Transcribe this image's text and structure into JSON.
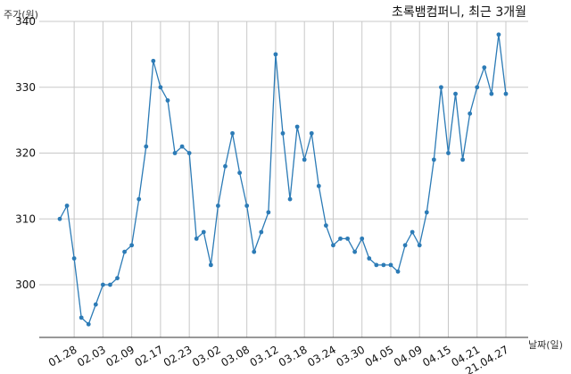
{
  "chart_data": {
    "type": "line",
    "title": "초록뱀컴퍼니, 최근 3개월",
    "ylabel": "주가(원)",
    "xlabel": "날짜(일)",
    "ylim": [
      292,
      340
    ],
    "yticks": [
      300,
      310,
      320,
      330,
      340
    ],
    "xtick_labels": [
      "01.28",
      "02.03",
      "02.09",
      "02.17",
      "02.23",
      "03.02",
      "03.08",
      "03.12",
      "03.18",
      "03.24",
      "03.30",
      "04.05",
      "04.09",
      "04.15",
      "04.21",
      "21.04.27"
    ],
    "xtick_index": [
      2,
      6,
      10,
      14,
      18,
      22,
      26,
      30,
      34,
      38,
      42,
      46,
      50,
      54,
      58,
      62
    ],
    "grid": true,
    "color": "#2c7bb6",
    "series": [
      {
        "values": [
          310,
          312,
          304,
          295,
          294,
          297,
          300,
          300,
          301,
          305,
          306,
          313,
          321,
          334,
          330,
          328,
          320,
          321,
          320,
          307,
          308,
          303,
          312,
          318,
          323,
          317,
          312,
          305,
          308,
          311,
          335,
          323,
          313,
          324,
          319,
          323,
          315,
          309,
          306,
          307,
          307,
          305,
          307,
          304,
          303,
          303,
          303,
          302,
          306,
          308,
          306,
          311,
          319,
          330,
          320,
          329,
          319,
          326,
          330,
          333,
          329,
          338,
          329
        ]
      }
    ]
  }
}
